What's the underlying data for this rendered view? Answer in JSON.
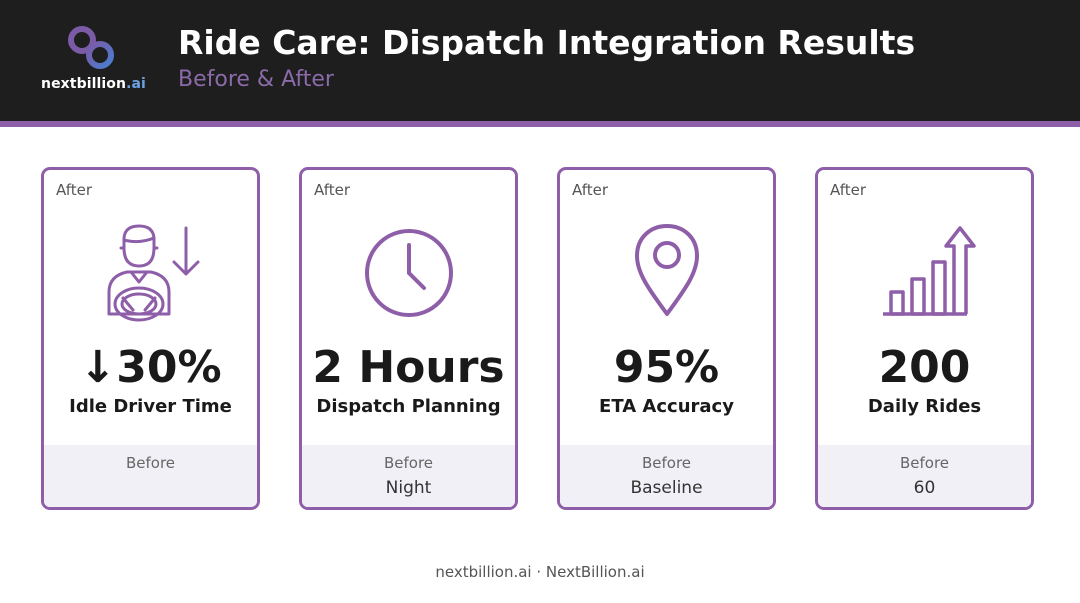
{
  "brand": {
    "name_main": "nextbillion",
    "name_accent": ".ai",
    "logo_icon": "infinity-loop-logo",
    "accent_color": "#8e5fa8",
    "logo_blue": "#6aa2e2"
  },
  "header": {
    "title": "Ride Care: Dispatch Integration Results",
    "subtitle": "Before & After"
  },
  "cards": [
    {
      "after_label": "After",
      "icon": "driver-idle-down-icon",
      "value": "↓30%",
      "label": "Idle Driver Time",
      "before_label": "Before",
      "before_value": ""
    },
    {
      "after_label": "After",
      "icon": "clock-icon",
      "value": "2 Hours",
      "label": "Dispatch Planning",
      "before_label": "Before",
      "before_value": "Night"
    },
    {
      "after_label": "After",
      "icon": "map-pin-icon",
      "value": "95%",
      "label": "ETA Accuracy",
      "before_label": "Before",
      "before_value": "Baseline"
    },
    {
      "after_label": "After",
      "icon": "bar-chart-up-icon",
      "value": "200",
      "label": "Daily Rides",
      "before_label": "Before",
      "before_value": "60"
    }
  ],
  "footer": {
    "text": "nextbillion.ai · NextBillion.ai"
  }
}
